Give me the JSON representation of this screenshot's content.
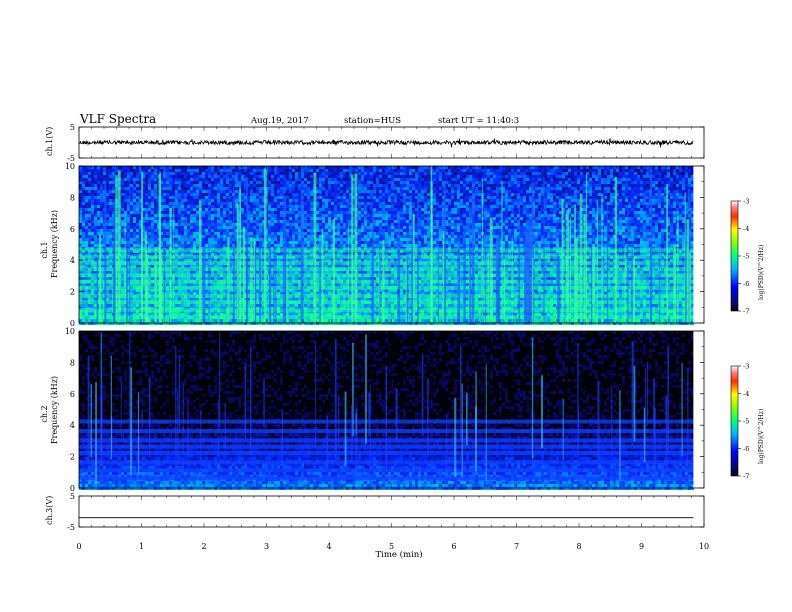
{
  "header": {
    "title": "VLF Spectra",
    "date": "Aug.19, 2017",
    "station": "station=HUS",
    "start": "start UT = 11:40:3"
  },
  "chart_data": [
    {
      "type": "line",
      "name": "ch1-waveform",
      "ylabel": "ch.1(V)",
      "ylim": [
        -5,
        5
      ],
      "yticks": [
        "5",
        "-5"
      ],
      "xlim": [
        0,
        10
      ],
      "baseline": 0,
      "color": "#000000"
    },
    {
      "type": "heatmap",
      "name": "ch1-spectrogram",
      "ylabel": "ch.1\nFrequency (kHz)",
      "ylim": [
        0,
        10
      ],
      "yticks": [
        "0",
        "2",
        "4",
        "6",
        "8",
        "10"
      ],
      "xlim": [
        0,
        9.83
      ],
      "colorbar": {
        "label": "log(PSD)(V^2/Hz)",
        "ticks": [
          "-3",
          "-4",
          "-5",
          "-6",
          "-7"
        ],
        "range": [
          -7,
          -3
        ]
      },
      "bands_khz": [
        0.35,
        0.8,
        1.3,
        1.7,
        2.2,
        2.6,
        3.0,
        3.4,
        3.8,
        4.2,
        4.6
      ]
    },
    {
      "type": "heatmap",
      "name": "ch2-spectrogram",
      "ylabel": "ch.2\nFrequency (kHz)",
      "ylim": [
        0,
        10
      ],
      "yticks": [
        "0",
        "2",
        "4",
        "6",
        "8",
        "10"
      ],
      "xlim": [
        0,
        9.83
      ],
      "colorbar": {
        "label": "log(PSD)(V^2/Hz)",
        "ticks": [
          "-3",
          "-4",
          "-5",
          "-6",
          "-7"
        ],
        "range": [
          -7,
          -3
        ]
      },
      "bands_khz": [
        0.6,
        1.1,
        1.6,
        2.2,
        2.6,
        3.0,
        3.6,
        4.2
      ]
    },
    {
      "type": "line",
      "name": "ch3-waveform",
      "ylabel": "ch.3(V)",
      "ylim": [
        -5,
        5
      ],
      "yticks": [
        "5",
        "-5"
      ],
      "xlim": [
        0,
        10
      ],
      "baseline": -2,
      "color": "#000000"
    }
  ],
  "xaxis": {
    "label": "Time (min)",
    "ticks": [
      "0",
      "1",
      "2",
      "3",
      "4",
      "5",
      "6",
      "7",
      "8",
      "9",
      "10"
    ],
    "range": [
      0,
      10
    ]
  },
  "colors": {
    "background": "#ffffff",
    "spectrogram_bg": "#000000"
  }
}
